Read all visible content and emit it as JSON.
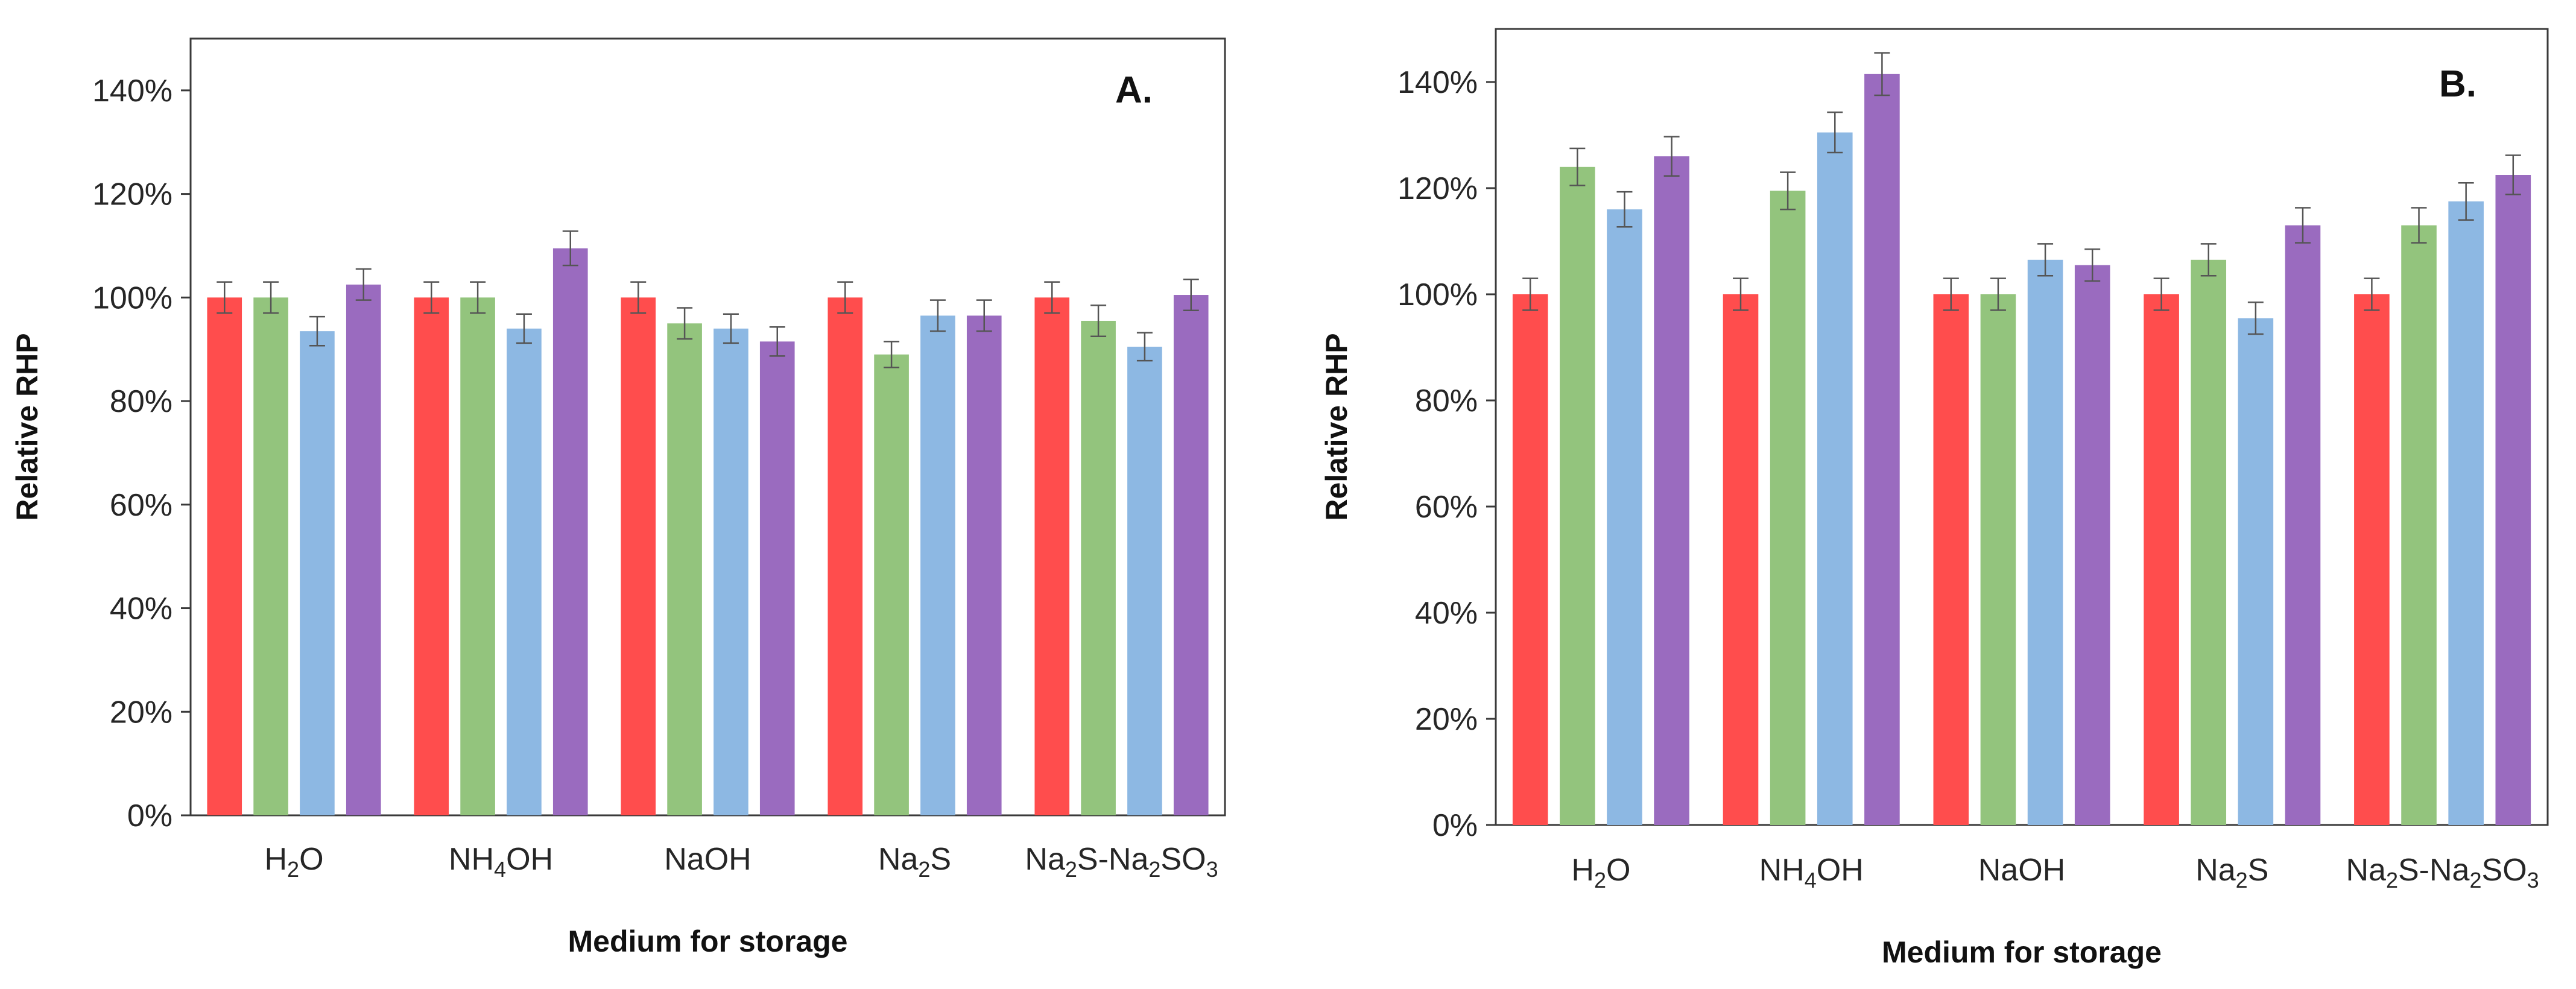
{
  "chart_data": [
    {
      "type": "bar",
      "panel_label": "A.",
      "xlabel": "Medium for storage",
      "ylabel": "Relative RHP",
      "ylim": [
        0,
        1.5
      ],
      "y_ticks": [
        "0%",
        "20%",
        "40%",
        "60%",
        "80%",
        "100%",
        "120%",
        "140%"
      ],
      "y_tick_values": [
        0,
        0.2,
        0.4,
        0.6,
        0.8,
        1.0,
        1.2,
        1.4
      ],
      "categories": [
        {
          "base": "H",
          "sub1": "2",
          "mid": "O",
          "sub2": "",
          "tail": "",
          "sub3": ""
        },
        {
          "base": "NH",
          "sub1": "4",
          "mid": "OH",
          "sub2": "",
          "tail": "",
          "sub3": ""
        },
        {
          "base": "NaOH",
          "sub1": "",
          "mid": "",
          "sub2": "",
          "tail": "",
          "sub3": ""
        },
        {
          "base": "Na",
          "sub1": "2",
          "mid": "S",
          "sub2": "",
          "tail": "",
          "sub3": ""
        },
        {
          "base": "Na",
          "sub1": "2",
          "mid": "S-Na",
          "sub2": "2",
          "tail": "SO",
          "sub3": "3"
        }
      ],
      "series": [
        {
          "color": "#ff4d4d",
          "values": [
            1.0,
            1.0,
            1.0,
            1.0,
            1.0
          ],
          "errors": [
            0.03,
            0.03,
            0.03,
            0.03,
            0.03
          ]
        },
        {
          "color": "#93c47d",
          "values": [
            1.0,
            1.0,
            0.95,
            0.89,
            0.955
          ],
          "errors": [
            0.03,
            0.03,
            0.03,
            0.025,
            0.03
          ]
        },
        {
          "color": "#8db8e3",
          "values": [
            0.935,
            0.94,
            0.94,
            0.965,
            0.905
          ],
          "errors": [
            0.028,
            0.028,
            0.028,
            0.03,
            0.027
          ]
        },
        {
          "color": "#9a6bbf",
          "values": [
            1.025,
            1.095,
            0.915,
            0.965,
            1.005
          ],
          "errors": [
            0.03,
            0.033,
            0.028,
            0.03,
            0.03
          ]
        }
      ]
    },
    {
      "type": "bar",
      "panel_label": "B.",
      "xlabel": "Medium for storage",
      "ylabel": "Relative RHP",
      "ylim": [
        0,
        1.5
      ],
      "y_ticks": [
        "0%",
        "20%",
        "40%",
        "60%",
        "80%",
        "100%",
        "120%",
        "140%"
      ],
      "y_tick_values": [
        0,
        0.2,
        0.4,
        0.6,
        0.8,
        1.0,
        1.2,
        1.4
      ],
      "categories": [
        {
          "base": "H",
          "sub1": "2",
          "mid": "O",
          "sub2": "",
          "tail": "",
          "sub3": ""
        },
        {
          "base": "NH",
          "sub1": "4",
          "mid": "OH",
          "sub2": "",
          "tail": "",
          "sub3": ""
        },
        {
          "base": "NaOH",
          "sub1": "",
          "mid": "",
          "sub2": "",
          "tail": "",
          "sub3": ""
        },
        {
          "base": "Na",
          "sub1": "2",
          "mid": "S",
          "sub2": "",
          "tail": "",
          "sub3": ""
        },
        {
          "base": "Na",
          "sub1": "2",
          "mid": "S-Na",
          "sub2": "2",
          "tail": "SO",
          "sub3": "3"
        }
      ],
      "series": [
        {
          "color": "#ff4d4d",
          "values": [
            1.0,
            1.0,
            1.0,
            1.0,
            1.0
          ],
          "errors": [
            0.03,
            0.03,
            0.03,
            0.03,
            0.03
          ]
        },
        {
          "color": "#93c47d",
          "values": [
            1.24,
            1.195,
            1.0,
            1.065,
            1.13
          ],
          "errors": [
            0.035,
            0.035,
            0.03,
            0.03,
            0.033
          ]
        },
        {
          "color": "#8db8e3",
          "values": [
            1.16,
            1.305,
            1.065,
            0.955,
            1.175
          ],
          "errors": [
            0.033,
            0.038,
            0.03,
            0.03,
            0.035
          ]
        },
        {
          "color": "#9a6bbf",
          "values": [
            1.26,
            1.415,
            1.055,
            1.13,
            1.225
          ],
          "errors": [
            0.037,
            0.04,
            0.03,
            0.033,
            0.037
          ]
        }
      ]
    }
  ]
}
